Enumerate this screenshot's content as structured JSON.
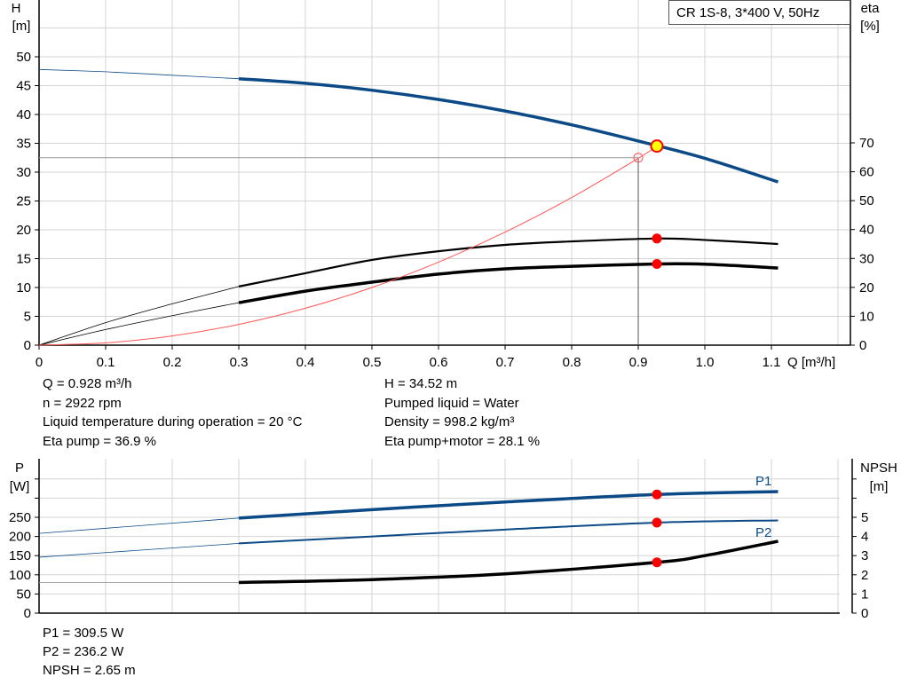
{
  "colors": {
    "head": "#0b4a86",
    "eta": "#000000",
    "system": "#ff5555",
    "op_point": "#ff0000",
    "op_fill": "#ffff00",
    "power": "#0b4a86",
    "npsh": "#000000",
    "grid": "#d4d4d4"
  },
  "chart_data": [
    {
      "type": "line",
      "title": "CR 1S-8, 3*400 V, 50Hz",
      "xlabel": "Q [m³/h]",
      "ylabel_left": [
        "H",
        "[m]"
      ],
      "ylabel_right": [
        "eta",
        "[%]"
      ],
      "xlim": [
        0,
        1.2
      ],
      "ylim_left": [
        0,
        55
      ],
      "ylim_right": [
        0,
        70
      ],
      "x_ticks": [
        "0",
        "0.1",
        "0.2",
        "0.3",
        "0.4",
        "0.5",
        "0.6",
        "0.7",
        "0.8",
        "0.9",
        "1.0",
        "1.1"
      ],
      "y_ticks_left": [
        "0",
        "5",
        "10",
        "15",
        "20",
        "25",
        "30",
        "35",
        "40",
        "45",
        "50"
      ],
      "y_ticks_right": [
        "0",
        "10",
        "20",
        "30",
        "40",
        "50",
        "60",
        "70"
      ],
      "grid": true,
      "series": [
        {
          "key": "head",
          "axis": "left",
          "curve_from": 0.3,
          "x": [
            0,
            0.1,
            0.2,
            0.3,
            0.4,
            0.5,
            0.6,
            0.7,
            0.8,
            0.9,
            1.0,
            1.11
          ],
          "y": [
            47.8,
            47.4,
            46.8,
            46.2,
            45.4,
            44.2,
            42.6,
            40.6,
            38.2,
            35.4,
            32.4,
            28.3
          ]
        },
        {
          "key": "eta_pump",
          "axis": "right",
          "curve_from": 0.3,
          "x": [
            0,
            0.1,
            0.2,
            0.3,
            0.4,
            0.5,
            0.6,
            0.7,
            0.8,
            0.928,
            1.0,
            1.11
          ],
          "y": [
            0,
            7.8,
            14.3,
            20.3,
            24.9,
            29.5,
            32.5,
            34.7,
            35.9,
            36.9,
            36.4,
            35.0
          ]
        },
        {
          "key": "eta_total",
          "axis": "right",
          "curve_from": 0.3,
          "x": [
            0,
            0.1,
            0.2,
            0.3,
            0.4,
            0.5,
            0.6,
            0.7,
            0.8,
            0.928,
            1.0,
            1.11
          ],
          "y": [
            0,
            5.4,
            10.2,
            14.7,
            18.7,
            21.8,
            24.6,
            26.4,
            27.3,
            28.1,
            28.0,
            26.7
          ]
        },
        {
          "key": "system",
          "axis": "left",
          "x": [
            0,
            0.1,
            0.2,
            0.3,
            0.4,
            0.5,
            0.6,
            0.7,
            0.8,
            0.9,
            0.928
          ],
          "y": [
            0,
            0.4,
            1.6,
            3.6,
            6.4,
            10.0,
            14.4,
            19.6,
            25.6,
            32.4,
            34.52
          ]
        }
      ],
      "duty_point": {
        "q": 0.9,
        "h": 32.5
      },
      "operating_point": {
        "q": 0.928,
        "h": 34.52,
        "eta_pump": 36.9,
        "eta_total": 28.1
      }
    },
    {
      "type": "line",
      "ylabel_left": [
        "P",
        "[W]"
      ],
      "ylabel_right": [
        "NPSH",
        "[m]"
      ],
      "xlim": [
        0,
        1.2
      ],
      "ylim_left": [
        0,
        400
      ],
      "ylim_right": [
        0,
        8
      ],
      "y_ticks_left": [
        "0",
        "50",
        "100",
        "150",
        "200",
        "250"
      ],
      "y_ticks_right": [
        "0",
        "1",
        "2",
        "3",
        "4",
        "5"
      ],
      "grid": true,
      "series": [
        {
          "key": "p1",
          "name": "P1",
          "axis": "left",
          "curve_from": 0.3,
          "x": [
            0,
            0.3,
            0.5,
            0.7,
            0.928,
            1.11
          ],
          "y": [
            208,
            248,
            270,
            290,
            309.5,
            317
          ]
        },
        {
          "key": "p2",
          "name": "P2",
          "axis": "left",
          "curve_from": 0.3,
          "x": [
            0,
            0.3,
            0.5,
            0.7,
            0.928,
            1.11
          ],
          "y": [
            146,
            182,
            200,
            218,
            236.2,
            242
          ]
        },
        {
          "key": "npsh",
          "axis": "right",
          "curve_from": 0.3,
          "x": [
            0,
            0.3,
            0.5,
            0.7,
            0.928,
            1.0,
            1.11
          ],
          "y": [
            1.6,
            1.6,
            1.75,
            2.05,
            2.65,
            3.0,
            3.75
          ]
        }
      ]
    }
  ],
  "info_top": {
    "left": [
      "Q = 0.928 m³/h",
      "n = 2922 rpm",
      "Liquid temperature during operation = 20 °C",
      "Eta pump = 36.9 %"
    ],
    "right": [
      "H = 34.52 m",
      "Pumped liquid = Water",
      "Density = 998.2 kg/m³",
      "Eta pump+motor = 28.1 %"
    ]
  },
  "info_bottom": [
    "P1 = 309.5 W",
    "P2 = 236.2 W",
    "NPSH = 2.65 m"
  ]
}
